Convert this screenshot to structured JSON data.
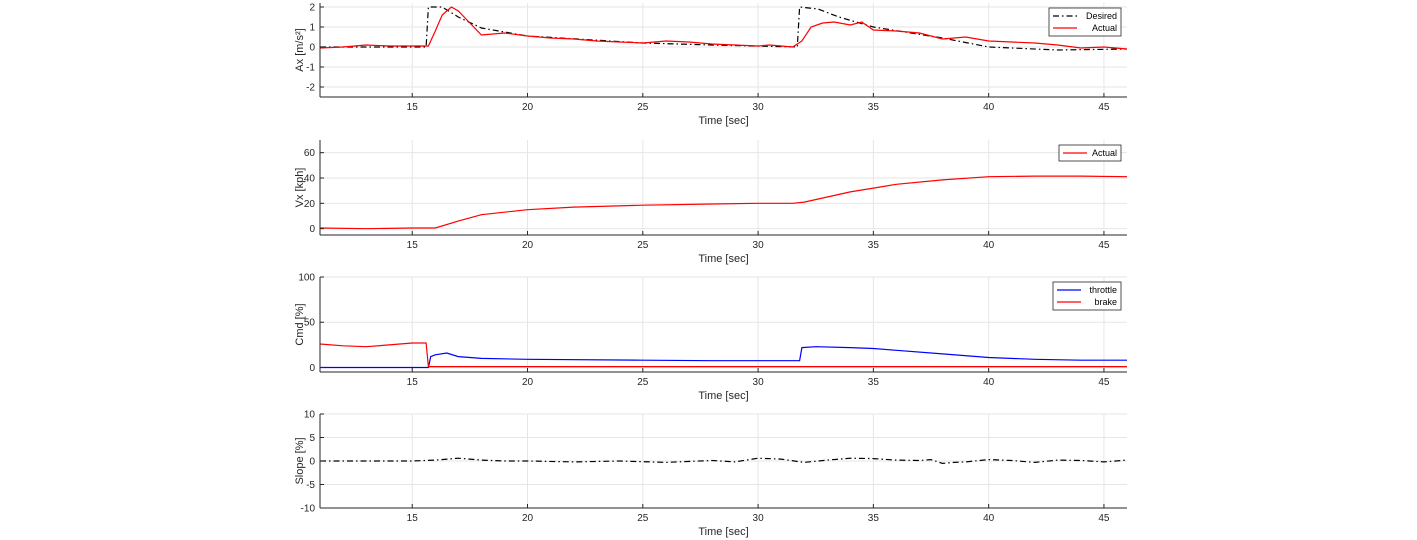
{
  "chart_data": [
    {
      "type": "line",
      "xlabel": "Time [sec]",
      "ylabel": "Ax [m/s²]",
      "xlim": [
        11,
        46
      ],
      "ylim": [
        -2.5,
        2.2
      ],
      "xticks": [
        15,
        20,
        25,
        30,
        35,
        40,
        45
      ],
      "yticks": [
        -2,
        -1,
        0,
        1,
        2
      ],
      "grid": true,
      "legend_position": "top-right",
      "series": [
        {
          "name": "Desired",
          "color": "#000000",
          "style": "dash-dot",
          "x": [
            11,
            15.6,
            15.7,
            16.3,
            17,
            18,
            20,
            25,
            28,
            31.7,
            31.8,
            32.6,
            33.5,
            35,
            38,
            40,
            43,
            46
          ],
          "y": [
            0,
            0,
            2,
            2,
            1.5,
            0.95,
            0.55,
            0.2,
            0.1,
            0,
            2,
            1.9,
            1.5,
            1.0,
            0.45,
            0,
            -0.15,
            -0.1
          ]
        },
        {
          "name": "Actual",
          "color": "#ff0000",
          "style": "solid",
          "x": [
            11,
            12,
            13,
            14,
            15.7,
            16,
            16.3,
            16.7,
            17,
            17.5,
            18,
            19,
            20,
            21,
            22,
            23,
            24,
            25,
            26,
            27,
            28,
            29,
            30,
            30.5,
            31,
            31.5,
            31.9,
            32.3,
            32.8,
            33.3,
            34,
            34.5,
            35,
            36,
            37,
            38,
            39,
            40,
            41,
            42,
            43,
            44,
            45,
            46
          ],
          "y": [
            -0.05,
            0,
            0.1,
            0.05,
            0.05,
            0.8,
            1.6,
            2.0,
            1.8,
            1.2,
            0.6,
            0.7,
            0.55,
            0.45,
            0.4,
            0.3,
            0.25,
            0.2,
            0.3,
            0.25,
            0.15,
            0.1,
            0.05,
            0.1,
            0.05,
            0,
            0.3,
            1.0,
            1.2,
            1.25,
            1.1,
            1.25,
            0.85,
            0.8,
            0.7,
            0.4,
            0.5,
            0.3,
            0.25,
            0.2,
            0.1,
            -0.05,
            0,
            -0.1
          ]
        }
      ]
    },
    {
      "type": "line",
      "xlabel": "Time [sec]",
      "ylabel": "Vx [kph]",
      "xlim": [
        11,
        46
      ],
      "ylim": [
        -5,
        70
      ],
      "xticks": [
        15,
        20,
        25,
        30,
        35,
        40,
        45
      ],
      "yticks": [
        0,
        20,
        40,
        60
      ],
      "grid": true,
      "legend_position": "top-right",
      "series": [
        {
          "name": "Actual",
          "color": "#ff0000",
          "style": "solid",
          "x": [
            11,
            13,
            15,
            16,
            17,
            18,
            20,
            22,
            25,
            28,
            30,
            31.5,
            32,
            33,
            34,
            35,
            36,
            38,
            40,
            42,
            44,
            46
          ],
          "y": [
            0.5,
            0,
            0.5,
            0.5,
            6,
            11,
            15,
            17,
            18.5,
            19.5,
            20,
            20,
            21,
            25,
            29,
            32,
            35,
            38.5,
            41,
            41.5,
            41.5,
            41
          ]
        }
      ]
    },
    {
      "type": "line",
      "xlabel": "Time [sec]",
      "ylabel": "Cmd [%]",
      "xlim": [
        11,
        46
      ],
      "ylim": [
        -5,
        100
      ],
      "xticks": [
        15,
        20,
        25,
        30,
        35,
        40,
        45
      ],
      "yticks": [
        0,
        50,
        100
      ],
      "grid": true,
      "legend_position": "top-right",
      "series": [
        {
          "name": "throttle",
          "color": "#0000ff",
          "style": "solid",
          "x": [
            11,
            15.7,
            15.8,
            16,
            16.5,
            17,
            18,
            20,
            25,
            28,
            31.8,
            31.9,
            32.5,
            34,
            35,
            36,
            38,
            40,
            42,
            44,
            46
          ],
          "y": [
            0,
            0,
            12,
            14,
            16,
            12,
            10,
            9,
            8,
            7.5,
            7.5,
            22,
            23,
            22,
            21,
            19,
            15,
            11,
            9,
            8,
            8
          ]
        },
        {
          "name": "brake",
          "color": "#ff0000",
          "style": "solid",
          "x": [
            11,
            12,
            13,
            14,
            15,
            15.6,
            15.7,
            46
          ],
          "y": [
            26,
            24,
            23,
            25,
            27,
            27,
            1,
            1
          ]
        }
      ]
    },
    {
      "type": "line",
      "xlabel": "Time [sec]",
      "ylabel": "Slope [%]",
      "xlim": [
        11,
        46
      ],
      "ylim": [
        -10,
        10
      ],
      "xticks": [
        15,
        20,
        25,
        30,
        35,
        40,
        45
      ],
      "yticks": [
        -10,
        -5,
        0,
        5,
        10
      ],
      "grid": true,
      "legend_position": "none",
      "series": [
        {
          "name": "",
          "color": "#000000",
          "style": "dash-dot",
          "x": [
            11,
            15,
            16,
            17,
            18,
            19,
            20,
            22,
            24,
            26,
            28,
            29,
            30,
            31,
            32,
            33,
            34,
            35,
            36,
            37,
            37.5,
            38,
            38.5,
            39,
            40,
            41,
            42,
            43,
            44,
            45,
            46
          ],
          "y": [
            0,
            0,
            0.2,
            0.6,
            0.2,
            0,
            0,
            -0.2,
            0,
            -0.3,
            0.1,
            -0.2,
            0.6,
            0.4,
            -0.3,
            0.2,
            0.6,
            0.5,
            0.2,
            0.1,
            0.3,
            -0.5,
            -0.3,
            -0.2,
            0.3,
            0.1,
            -0.3,
            0.2,
            0.1,
            -0.2,
            0.2
          ]
        }
      ]
    }
  ]
}
